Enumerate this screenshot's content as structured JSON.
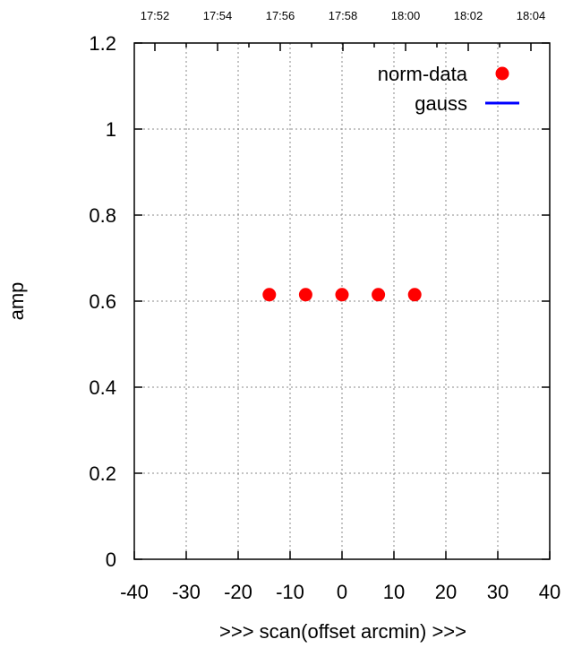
{
  "chart_data": {
    "type": "scatter",
    "xlabel": ">>> scan(offset arcmin) >>>",
    "ylabel": "amp",
    "xlim": [
      -40,
      40
    ],
    "ylim": [
      0,
      1.2
    ],
    "x_ticks": [
      "-40",
      "-30",
      "-20",
      "-10",
      "0",
      "10",
      "20",
      "30",
      "40"
    ],
    "y_ticks": [
      "0",
      "0.2",
      "0.4",
      "0.6",
      "0.8",
      "1",
      "1.2"
    ],
    "top_ticks": [
      "17:52",
      "17:54",
      "17:56",
      "17:58",
      "18:00",
      "18:02",
      "18:04"
    ],
    "grid": true,
    "legend_position": "top-right",
    "series": [
      {
        "name": "norm-data",
        "marker": "circle",
        "color": "#ff0000",
        "x": [
          -14,
          -7,
          0,
          7,
          14
        ],
        "y": [
          0.615,
          0.615,
          0.615,
          0.615,
          0.615
        ]
      },
      {
        "name": "gauss",
        "marker": "line",
        "color": "#0000ff",
        "x": [],
        "y": []
      }
    ]
  }
}
